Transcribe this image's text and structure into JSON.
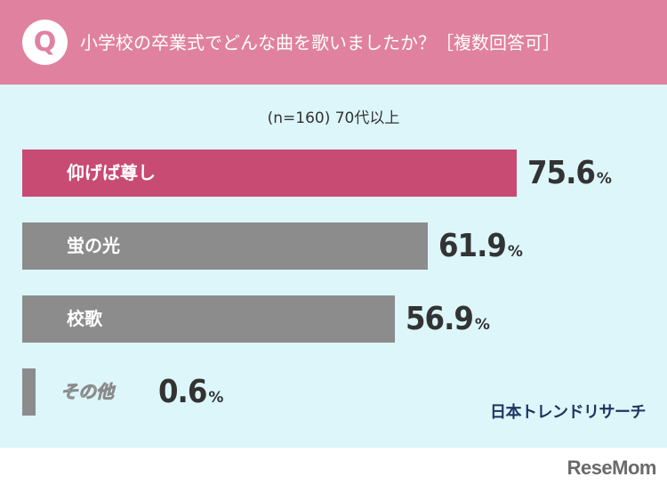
{
  "header": {
    "badge": "Q",
    "question": "小学校の卒業式でどんな曲を歌いましたか？［複数回答可］",
    "color": "#e0819f"
  },
  "subtitle": "(n=160) 70代以上",
  "chart_data": {
    "type": "bar",
    "orientation": "horizontal",
    "categories": [
      "仰げば尊し",
      "蛍の光",
      "校歌",
      "その他"
    ],
    "values": [
      75.6,
      61.9,
      56.9,
      0.6
    ],
    "value_labels": [
      "75.6",
      "61.9",
      "56.9",
      "0.6"
    ],
    "unit": "%",
    "xlim": [
      0,
      100
    ],
    "highlight_color": "#c84b74",
    "bar_color": "#8c8c8c",
    "grid": false,
    "legend": "none"
  },
  "brand": "日本トレンドリサーチ",
  "footer": {
    "logo": "ReseMom"
  }
}
